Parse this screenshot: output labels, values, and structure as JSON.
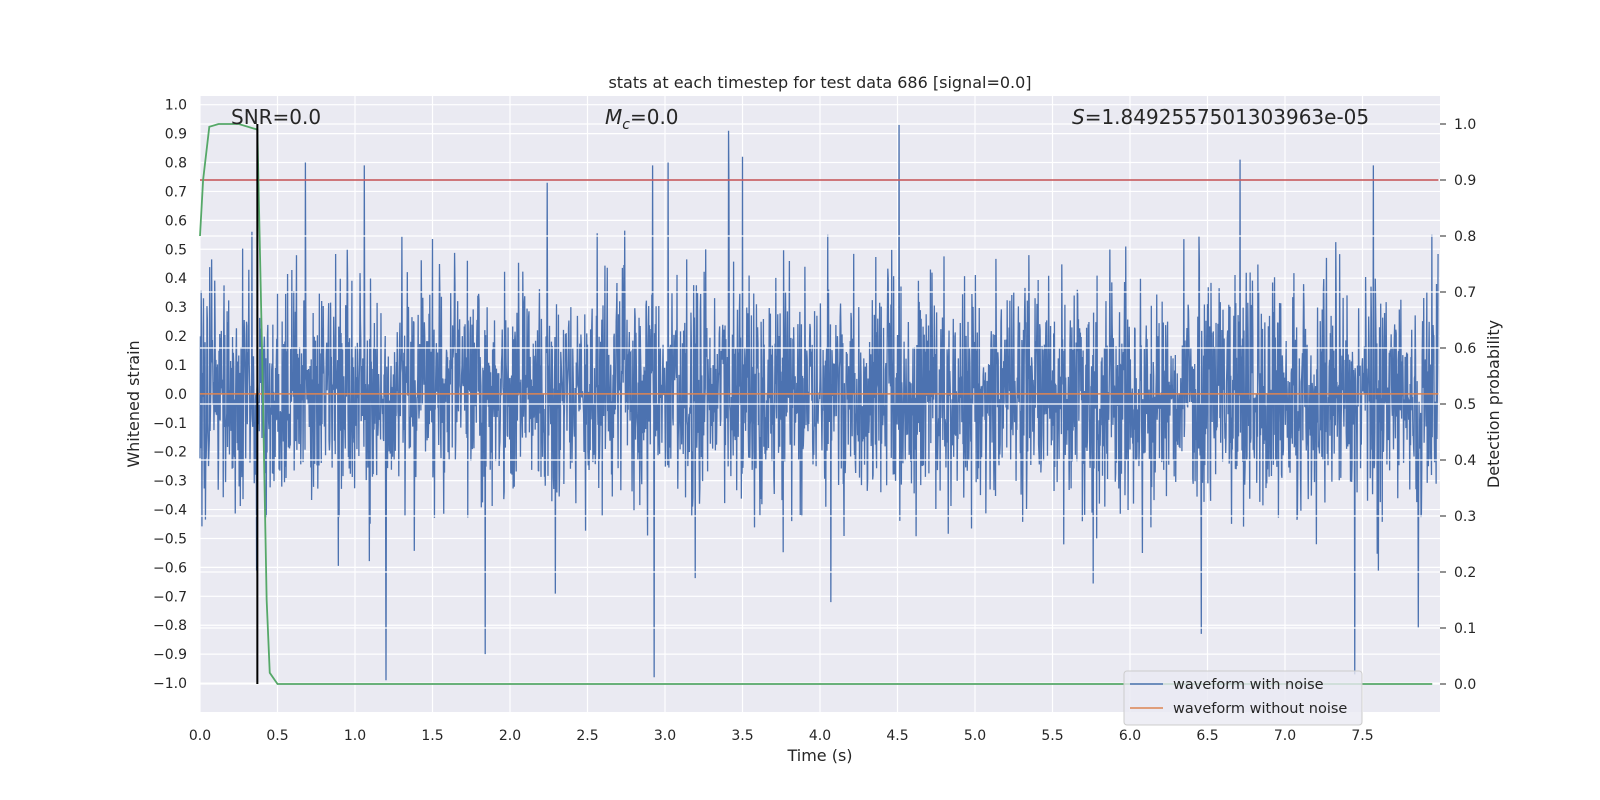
{
  "chart_data": {
    "type": "line",
    "title": "stats at each timestep for test data 686 [signal=0.0]",
    "xlabel": "Time (s)",
    "ylabel": "Whitened strain",
    "ylabel_right": "Detection probability",
    "xlim": [
      0.0,
      8.0
    ],
    "ylim": [
      -1.1,
      1.03
    ],
    "ylim_right": [
      -0.05,
      1.05
    ],
    "x_ticks": [
      "0.0",
      "0.5",
      "1.0",
      "1.5",
      "2.0",
      "2.5",
      "3.0",
      "3.5",
      "4.0",
      "4.5",
      "5.0",
      "5.5",
      "6.0",
      "6.5",
      "7.0",
      "7.5"
    ],
    "x_tick_values": [
      0.0,
      0.5,
      1.0,
      1.5,
      2.0,
      2.5,
      3.0,
      3.5,
      4.0,
      4.5,
      5.0,
      5.5,
      6.0,
      6.5,
      7.0,
      7.5
    ],
    "y_ticks": [
      "1.0",
      "0.9",
      "0.8",
      "0.7",
      "0.6",
      "0.5",
      "0.4",
      "0.3",
      "0.2",
      "0.1",
      "0.0",
      "−0.1",
      "−0.2",
      "−0.3",
      "−0.4",
      "−0.5",
      "−0.6",
      "−0.7",
      "−0.8",
      "−0.9",
      "−1.0"
    ],
    "y_tick_values": [
      1.0,
      0.9,
      0.8,
      0.7,
      0.6,
      0.5,
      0.4,
      0.3,
      0.2,
      0.1,
      0.0,
      -0.1,
      -0.2,
      -0.3,
      -0.4,
      -0.5,
      -0.6,
      -0.7,
      -0.8,
      -0.9,
      -1.0
    ],
    "y_ticks_right": [
      "1.0",
      "0.9",
      "0.8",
      "0.7",
      "0.6",
      "0.5",
      "0.4",
      "0.3",
      "0.2",
      "0.1",
      "0.0"
    ],
    "y_tick_values_right": [
      1.0,
      0.9,
      0.8,
      0.7,
      0.6,
      0.5,
      0.4,
      0.3,
      0.2,
      0.1,
      0.0
    ],
    "annotations": {
      "snr": "SNR=0.0",
      "mc_symbol": "M",
      "mc_sub": "c",
      "mc_value": "=0.0",
      "s_symbol": "S",
      "s_value": "=1.8492557501303963e-05"
    },
    "series": [
      {
        "name": "waveform with noise",
        "color": "#4c72b0",
        "kind": "noise",
        "sample_rate_hz": 400,
        "approx_std": 0.19,
        "range": [
          -0.99,
          0.93
        ],
        "notable_peaks": [
          [
            0.68,
            0.8
          ],
          [
            1.06,
            0.79
          ],
          [
            2.24,
            0.73
          ],
          [
            2.92,
            0.79
          ],
          [
            3.02,
            0.8
          ],
          [
            3.41,
            0.91
          ],
          [
            3.5,
            0.82
          ],
          [
            4.51,
            0.93
          ],
          [
            6.71,
            0.81
          ],
          [
            7.57,
            0.79
          ]
        ],
        "notable_troughs": [
          [
            1.2,
            -0.99
          ],
          [
            1.84,
            -0.9
          ],
          [
            2.93,
            -0.98
          ],
          [
            4.07,
            -0.72
          ],
          [
            6.46,
            -0.83
          ],
          [
            7.45,
            -0.97
          ],
          [
            7.86,
            -0.81
          ]
        ]
      },
      {
        "name": "waveform without noise",
        "color": "#dd8452",
        "x": [
          0.0,
          7.99
        ],
        "y": [
          0.0,
          0.0
        ]
      },
      {
        "name": "detection probability",
        "color": "#55a868",
        "axis": "right",
        "x": [
          0.0,
          0.02,
          0.06,
          0.12,
          0.25,
          0.37,
          0.4,
          0.43,
          0.45,
          0.5,
          7.95
        ],
        "y": [
          0.8,
          0.9,
          0.995,
          1.0,
          1.0,
          0.99,
          0.6,
          0.15,
          0.02,
          0.0,
          0.0
        ]
      },
      {
        "name": "threshold",
        "color": "#c44e52",
        "axis": "right",
        "x": [
          0.0,
          7.99
        ],
        "y": [
          0.9,
          0.9
        ]
      },
      {
        "name": "detection time",
        "color": "#000000",
        "axis": "right",
        "x": [
          0.37,
          0.37
        ],
        "y": [
          0.0,
          1.0
        ]
      }
    ],
    "legend": {
      "position": "lower-right",
      "entries": [
        {
          "label": "waveform with noise",
          "color": "#4c72b0"
        },
        {
          "label": "waveform without noise",
          "color": "#dd8452"
        }
      ]
    }
  }
}
